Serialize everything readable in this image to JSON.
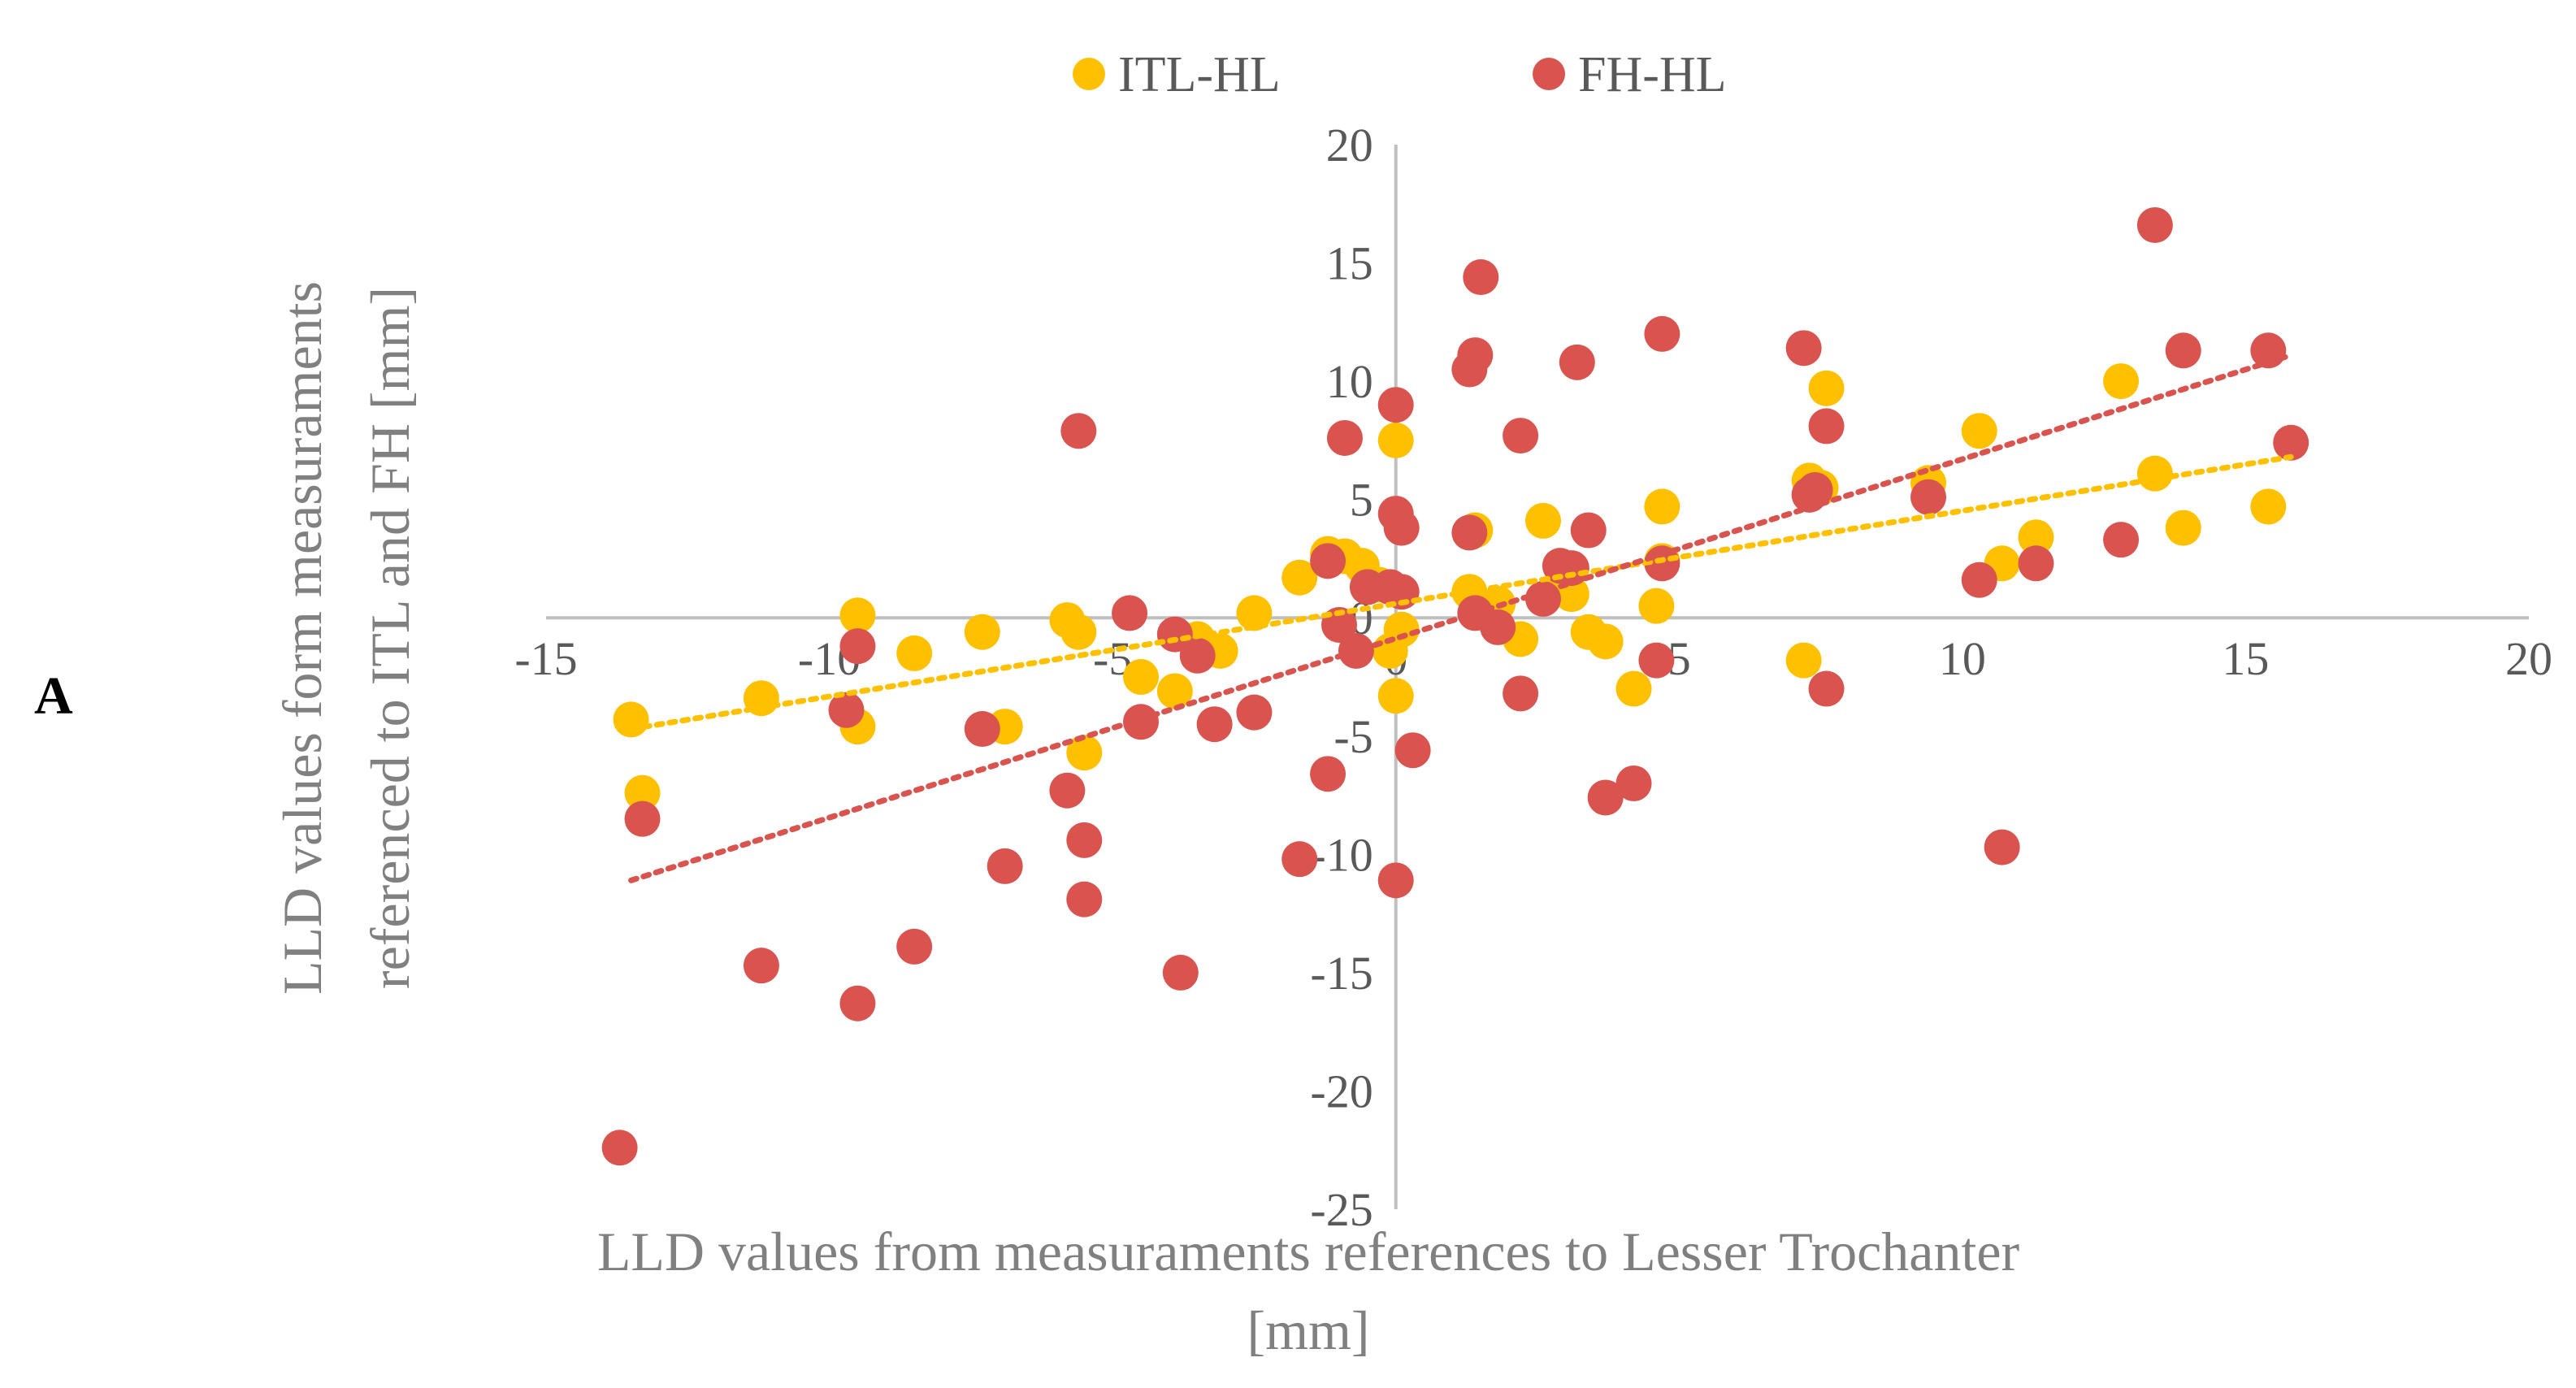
{
  "chart_data": {
    "type": "scatter",
    "panel_label": "A",
    "xlabel_lines": [
      "LLD values from measuraments references to Lesser Trochanter",
      "[mm]"
    ],
    "ylabel_lines": [
      "LLD values form measuraments",
      "referenced to ITL and FH [mm]"
    ],
    "xlim": [
      -15,
      20
    ],
    "ylim": [
      -25,
      20
    ],
    "x_ticks": [
      -15,
      -10,
      -5,
      0,
      5,
      10,
      15,
      20
    ],
    "y_ticks": [
      -25,
      -20,
      -15,
      -10,
      -5,
      0,
      5,
      10,
      15,
      20
    ],
    "grid": false,
    "legend_position": "top",
    "series": [
      {
        "name": "ITL-HL",
        "color": "#FFC000",
        "trendline": {
          "type": "linear",
          "style": "dotted",
          "from": [
            -13.5,
            -4.7
          ],
          "to": [
            15.8,
            6.8
          ]
        },
        "points": [
          [
            -13.5,
            -4.3
          ],
          [
            -13.3,
            -7.4
          ],
          [
            -11.2,
            -3.4
          ],
          [
            -9.5,
            0.1
          ],
          [
            -9.5,
            -4.6
          ],
          [
            -8.5,
            -1.5
          ],
          [
            -7.3,
            -0.6
          ],
          [
            -6.9,
            -4.6
          ],
          [
            -5.8,
            -0.1
          ],
          [
            -5.6,
            -0.6
          ],
          [
            -5.5,
            -5.7
          ],
          [
            -4.5,
            -2.5
          ],
          [
            -3.9,
            -3.1
          ],
          [
            -3.5,
            -0.9
          ],
          [
            -3.1,
            -1.4
          ],
          [
            -2.5,
            0.2
          ],
          [
            -1.7,
            1.7
          ],
          [
            -1.2,
            2.7
          ],
          [
            -0.9,
            2.6
          ],
          [
            -0.6,
            2.2
          ],
          [
            -0.3,
            1.4
          ],
          [
            -0.1,
            -1.4
          ],
          [
            0.0,
            7.5
          ],
          [
            0.0,
            -3.3
          ],
          [
            0.1,
            -0.5
          ],
          [
            1.3,
            1.1
          ],
          [
            1.4,
            3.7
          ],
          [
            1.8,
            0.6
          ],
          [
            2.2,
            -0.9
          ],
          [
            2.6,
            4.1
          ],
          [
            3.0,
            1.7
          ],
          [
            3.1,
            1.0
          ],
          [
            3.4,
            -0.6
          ],
          [
            3.7,
            -1.0
          ],
          [
            4.2,
            -3.0
          ],
          [
            4.6,
            0.5
          ],
          [
            4.7,
            4.7
          ],
          [
            4.7,
            2.4
          ],
          [
            7.2,
            -1.8
          ],
          [
            7.3,
            5.8
          ],
          [
            7.5,
            5.5
          ],
          [
            7.6,
            9.7
          ],
          [
            9.4,
            5.7
          ],
          [
            10.3,
            7.9
          ],
          [
            10.7,
            2.3
          ],
          [
            11.3,
            3.4
          ],
          [
            12.8,
            10.0
          ],
          [
            13.4,
            6.1
          ],
          [
            13.9,
            3.8
          ],
          [
            15.4,
            4.7
          ]
        ]
      },
      {
        "name": "FH-HL",
        "color": "#D9534F",
        "trendline": {
          "type": "linear",
          "style": "dotted",
          "from": [
            -13.5,
            -11.1
          ],
          "to": [
            15.8,
            11.1
          ]
        },
        "points": [
          [
            -13.7,
            -22.4
          ],
          [
            -13.3,
            -8.5
          ],
          [
            -11.2,
            -14.7
          ],
          [
            -9.7,
            -3.9
          ],
          [
            -9.5,
            -16.3
          ],
          [
            -9.5,
            -1.2
          ],
          [
            -8.5,
            -13.9
          ],
          [
            -7.3,
            -4.7
          ],
          [
            -6.9,
            -10.5
          ],
          [
            -5.8,
            -7.3
          ],
          [
            -5.6,
            7.9
          ],
          [
            -5.5,
            -9.4
          ],
          [
            -5.5,
            -11.9
          ],
          [
            -4.7,
            0.2
          ],
          [
            -4.5,
            -4.4
          ],
          [
            -3.9,
            -0.7
          ],
          [
            -3.8,
            -15.0
          ],
          [
            -3.5,
            -1.6
          ],
          [
            -3.2,
            -4.5
          ],
          [
            -2.5,
            -4.0
          ],
          [
            -1.7,
            -10.2
          ],
          [
            -1.2,
            -6.6
          ],
          [
            -1.2,
            2.4
          ],
          [
            -1.0,
            -0.3
          ],
          [
            -0.9,
            7.6
          ],
          [
            -0.7,
            -1.4
          ],
          [
            -0.5,
            1.3
          ],
          [
            -0.1,
            1.3
          ],
          [
            0.0,
            9.0
          ],
          [
            0.0,
            -11.1
          ],
          [
            0.0,
            4.4
          ],
          [
            0.1,
            3.8
          ],
          [
            0.1,
            1.1
          ],
          [
            0.3,
            -5.6
          ],
          [
            1.3,
            10.5
          ],
          [
            1.3,
            3.6
          ],
          [
            1.4,
            11.1
          ],
          [
            1.4,
            0.2
          ],
          [
            1.5,
            14.4
          ],
          [
            1.8,
            -0.4
          ],
          [
            2.2,
            -3.2
          ],
          [
            2.2,
            7.7
          ],
          [
            2.6,
            0.8
          ],
          [
            2.9,
            2.2
          ],
          [
            3.1,
            2.1
          ],
          [
            3.2,
            10.8
          ],
          [
            3.4,
            3.7
          ],
          [
            3.7,
            -7.6
          ],
          [
            4.2,
            -7.0
          ],
          [
            4.6,
            -1.8
          ],
          [
            4.7,
            2.3
          ],
          [
            4.7,
            12.0
          ],
          [
            7.2,
            11.4
          ],
          [
            7.3,
            5.2
          ],
          [
            7.4,
            5.4
          ],
          [
            7.6,
            -3.0
          ],
          [
            7.6,
            8.1
          ],
          [
            9.4,
            5.1
          ],
          [
            10.3,
            1.6
          ],
          [
            10.7,
            -9.7
          ],
          [
            11.3,
            2.3
          ],
          [
            12.8,
            3.3
          ],
          [
            13.4,
            16.6
          ],
          [
            13.9,
            11.3
          ],
          [
            15.4,
            11.3
          ],
          [
            15.8,
            7.4
          ]
        ]
      }
    ]
  }
}
